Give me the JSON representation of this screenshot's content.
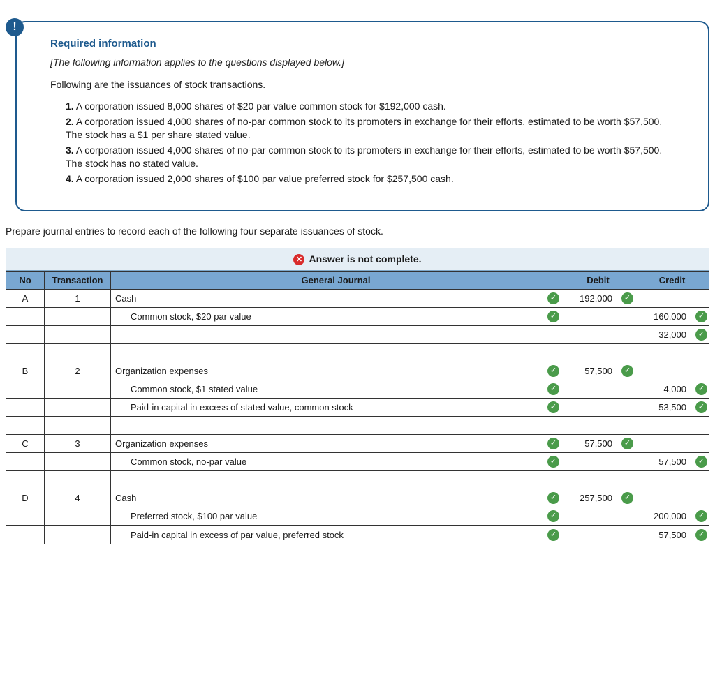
{
  "info": {
    "title": "Required information",
    "note": "[The following information applies to the questions displayed below.]",
    "lead": "Following are the issuances of stock transactions.",
    "items": [
      "A corporation issued 8,000 shares of $20 par value common stock for $192,000 cash.",
      "A corporation issued 4,000 shares of no-par common stock to its promoters in exchange for their efforts, estimated to be worth $57,500. The stock has a $1 per share stated value.",
      "A corporation issued 4,000 shares of no-par common stock to its promoters in exchange for their efforts, estimated to be worth $57,500. The stock has no stated value.",
      "A corporation issued 2,000 shares of $100 par value preferred stock for $257,500 cash."
    ]
  },
  "instruction": "Prepare journal entries to record each of the following four separate issuances of stock.",
  "banner": "Answer is not complete.",
  "headers": {
    "no": "No",
    "transaction": "Transaction",
    "gj": "General Journal",
    "debit": "Debit",
    "credit": "Credit"
  },
  "rows": [
    {
      "no": "A",
      "tx": "1",
      "acct": "Cash",
      "indent": false,
      "gjchk": true,
      "debit": "192,000",
      "dchk": true,
      "credit": "",
      "cchk": false
    },
    {
      "no": "",
      "tx": "",
      "acct": "Common stock, $20 par value",
      "indent": true,
      "gjchk": true,
      "debit": "",
      "dchk": false,
      "credit": "160,000",
      "cchk": true
    },
    {
      "no": "",
      "tx": "",
      "acct": "",
      "indent": false,
      "gjchk": false,
      "debit": "",
      "dchk": false,
      "credit": "32,000",
      "cchk": true
    },
    {
      "spacer": true
    },
    {
      "no": "B",
      "tx": "2",
      "acct": "Organization expenses",
      "indent": false,
      "gjchk": true,
      "debit": "57,500",
      "dchk": true,
      "credit": "",
      "cchk": false
    },
    {
      "no": "",
      "tx": "",
      "acct": "Common stock, $1 stated value",
      "indent": true,
      "gjchk": true,
      "debit": "",
      "dchk": false,
      "credit": "4,000",
      "cchk": true
    },
    {
      "no": "",
      "tx": "",
      "acct": "Paid-in capital in excess of stated value, common stock",
      "indent": true,
      "gjchk": true,
      "debit": "",
      "dchk": false,
      "credit": "53,500",
      "cchk": true
    },
    {
      "spacer": true
    },
    {
      "no": "C",
      "tx": "3",
      "acct": "Organization expenses",
      "indent": false,
      "gjchk": true,
      "debit": "57,500",
      "dchk": true,
      "credit": "",
      "cchk": false
    },
    {
      "no": "",
      "tx": "",
      "acct": "Common stock, no-par value",
      "indent": true,
      "gjchk": true,
      "debit": "",
      "dchk": false,
      "credit": "57,500",
      "cchk": true
    },
    {
      "spacer": true
    },
    {
      "no": "D",
      "tx": "4",
      "acct": "Cash",
      "indent": false,
      "gjchk": true,
      "debit": "257,500",
      "dchk": true,
      "credit": "",
      "cchk": false
    },
    {
      "no": "",
      "tx": "",
      "acct": "Preferred stock, $100 par value",
      "indent": true,
      "gjchk": true,
      "debit": "",
      "dchk": false,
      "credit": "200,000",
      "cchk": true
    },
    {
      "no": "",
      "tx": "",
      "acct": "Paid-in capital in excess of par value, preferred stock",
      "indent": true,
      "gjchk": true,
      "debit": "",
      "dchk": false,
      "credit": "57,500",
      "cchk": true
    }
  ],
  "colors": {
    "header_bg": "#79a7d1",
    "banner_bg": "#e5eef5",
    "banner_border": "#7fa8c9",
    "accent": "#1e5a8e",
    "check_green": "#4a9b4a",
    "x_red": "#d92b2b"
  }
}
